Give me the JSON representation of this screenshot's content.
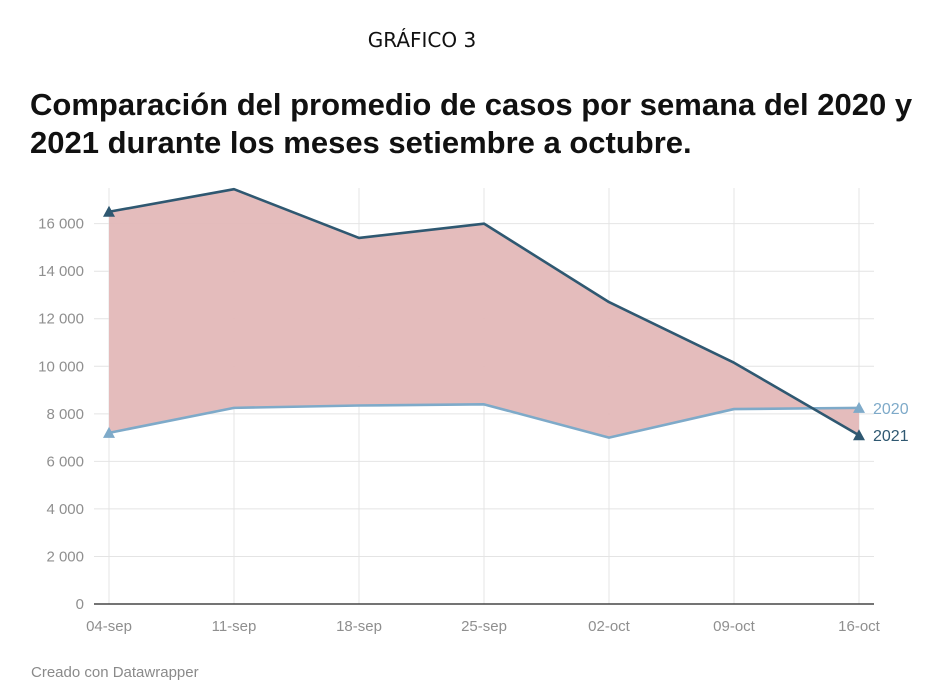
{
  "header": {
    "graphic_label": "GRÁFICO 3",
    "title": "Comparación del promedio de casos por semana del 2020 y 2021 durante los meses setiembre a octubre."
  },
  "footer": {
    "credit": "Creado con Datawrapper"
  },
  "colors": {
    "series_2021": "#2f5871",
    "series_2020": "#7eaac9",
    "fill_between": "#e3b8b8",
    "grid": "#e4e4e4"
  },
  "chart_data": {
    "type": "line",
    "categories": [
      "04-sep",
      "11-sep",
      "18-sep",
      "25-sep",
      "02-oct",
      "09-oct",
      "16-oct"
    ],
    "series": [
      {
        "name": "2021",
        "values": [
          16500,
          17450,
          15400,
          16000,
          12700,
          10150,
          7100
        ]
      },
      {
        "name": "2020",
        "values": [
          7200,
          8250,
          8350,
          8400,
          7000,
          8200,
          8250
        ]
      }
    ],
    "ylim": [
      0,
      17500
    ],
    "yticks": [
      0,
      2000,
      4000,
      6000,
      8000,
      10000,
      12000,
      14000,
      16000
    ],
    "ytick_labels": [
      "0",
      "2 000",
      "4 000",
      "6 000",
      "8 000",
      "10 000",
      "12 000",
      "14 000",
      "16 000"
    ],
    "grid": true,
    "legend": "direct labels at line ends",
    "xlabel": "",
    "ylabel": ""
  }
}
